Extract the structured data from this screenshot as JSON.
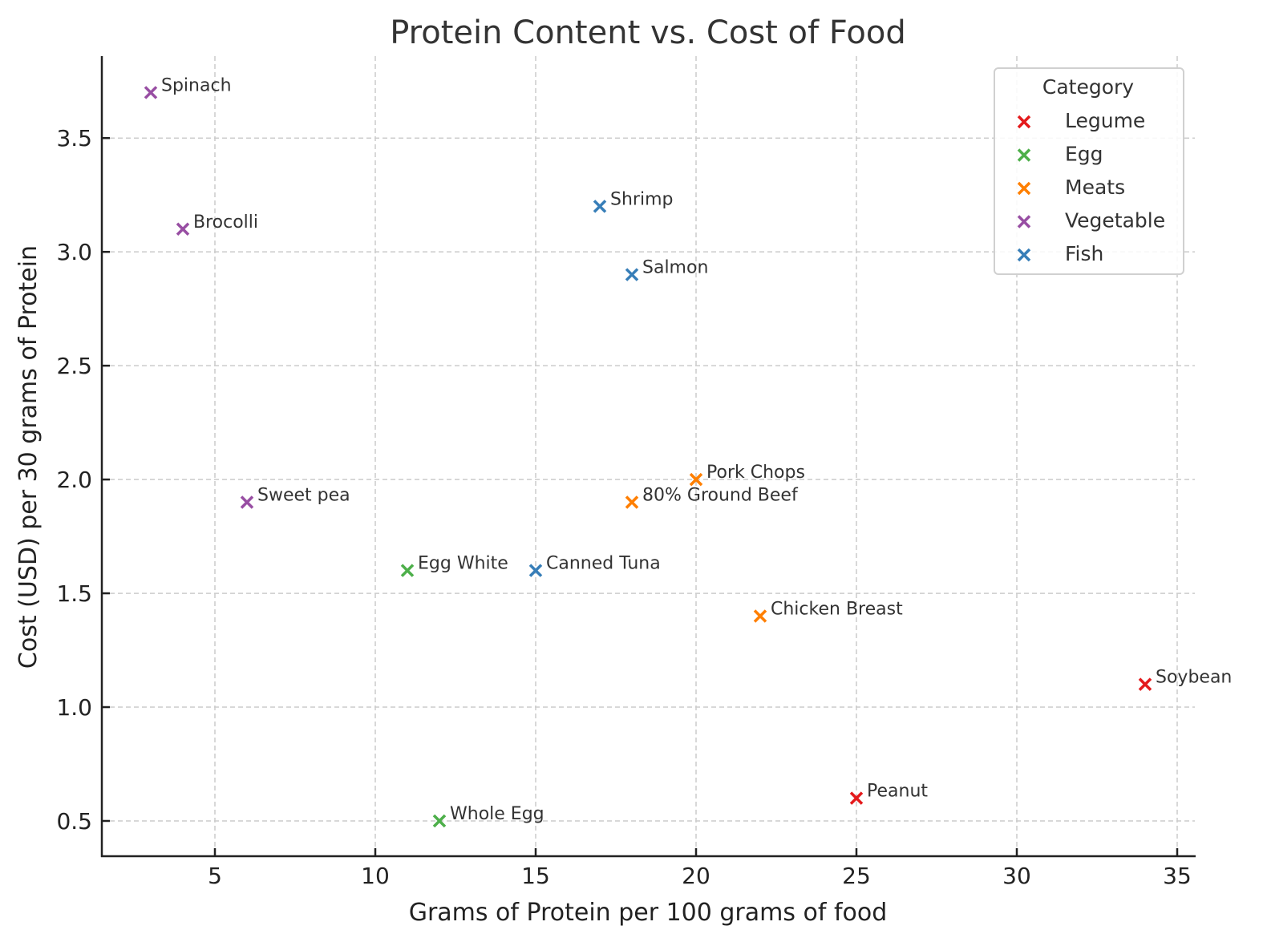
{
  "chart_data": {
    "type": "scatter",
    "title": "Protein Content vs. Cost of Food",
    "xlabel": "Grams of Protein per 100 grams of food",
    "ylabel": "Cost (USD) per 30 grams of Protein",
    "xlim": [
      1.475,
      35.55
    ],
    "ylim": [
      0.345,
      3.86
    ],
    "xticks": [
      5,
      10,
      15,
      20,
      25,
      30,
      35
    ],
    "xtick_labels": [
      "5",
      "10",
      "15",
      "20",
      "25",
      "30",
      "35"
    ],
    "yticks": [
      0.5,
      1.0,
      1.5,
      2.0,
      2.5,
      3.0,
      3.5
    ],
    "ytick_labels": [
      "0.5",
      "1.0",
      "1.5",
      "2.0",
      "2.5",
      "3.0",
      "3.5"
    ],
    "grid": true,
    "marker": "x",
    "legend": {
      "title": "Category",
      "placement": "top-right",
      "entries": [
        {
          "name": "Legume",
          "color": "#e41a1c"
        },
        {
          "name": "Egg",
          "color": "#4daf4a"
        },
        {
          "name": "Meats",
          "color": "#ff7f00"
        },
        {
          "name": "Vegetable",
          "color": "#984ea3"
        },
        {
          "name": "Fish",
          "color": "#377eb8"
        }
      ]
    },
    "points": [
      {
        "label": "Spinach",
        "x": 3,
        "y": 3.7,
        "category": "Vegetable"
      },
      {
        "label": "Brocolli",
        "x": 4,
        "y": 3.1,
        "category": "Vegetable"
      },
      {
        "label": "Sweet pea",
        "x": 6,
        "y": 1.9,
        "category": "Vegetable"
      },
      {
        "label": "Shrimp",
        "x": 17,
        "y": 3.2,
        "category": "Fish"
      },
      {
        "label": "Salmon",
        "x": 18,
        "y": 2.9,
        "category": "Fish"
      },
      {
        "label": "Canned Tuna",
        "x": 15,
        "y": 1.6,
        "category": "Fish"
      },
      {
        "label": "Egg White",
        "x": 11,
        "y": 1.6,
        "category": "Egg"
      },
      {
        "label": "Whole Egg",
        "x": 12,
        "y": 0.5,
        "category": "Egg"
      },
      {
        "label": "Pork Chops",
        "x": 20,
        "y": 2.0,
        "category": "Meats"
      },
      {
        "label": "80% Ground Beef",
        "x": 18,
        "y": 1.9,
        "category": "Meats"
      },
      {
        "label": "Chicken Breast",
        "x": 22,
        "y": 1.4,
        "category": "Meats"
      },
      {
        "label": "Soybean",
        "x": 34,
        "y": 1.1,
        "category": "Legume"
      },
      {
        "label": "Peanut",
        "x": 25,
        "y": 0.6,
        "category": "Legume"
      }
    ]
  }
}
